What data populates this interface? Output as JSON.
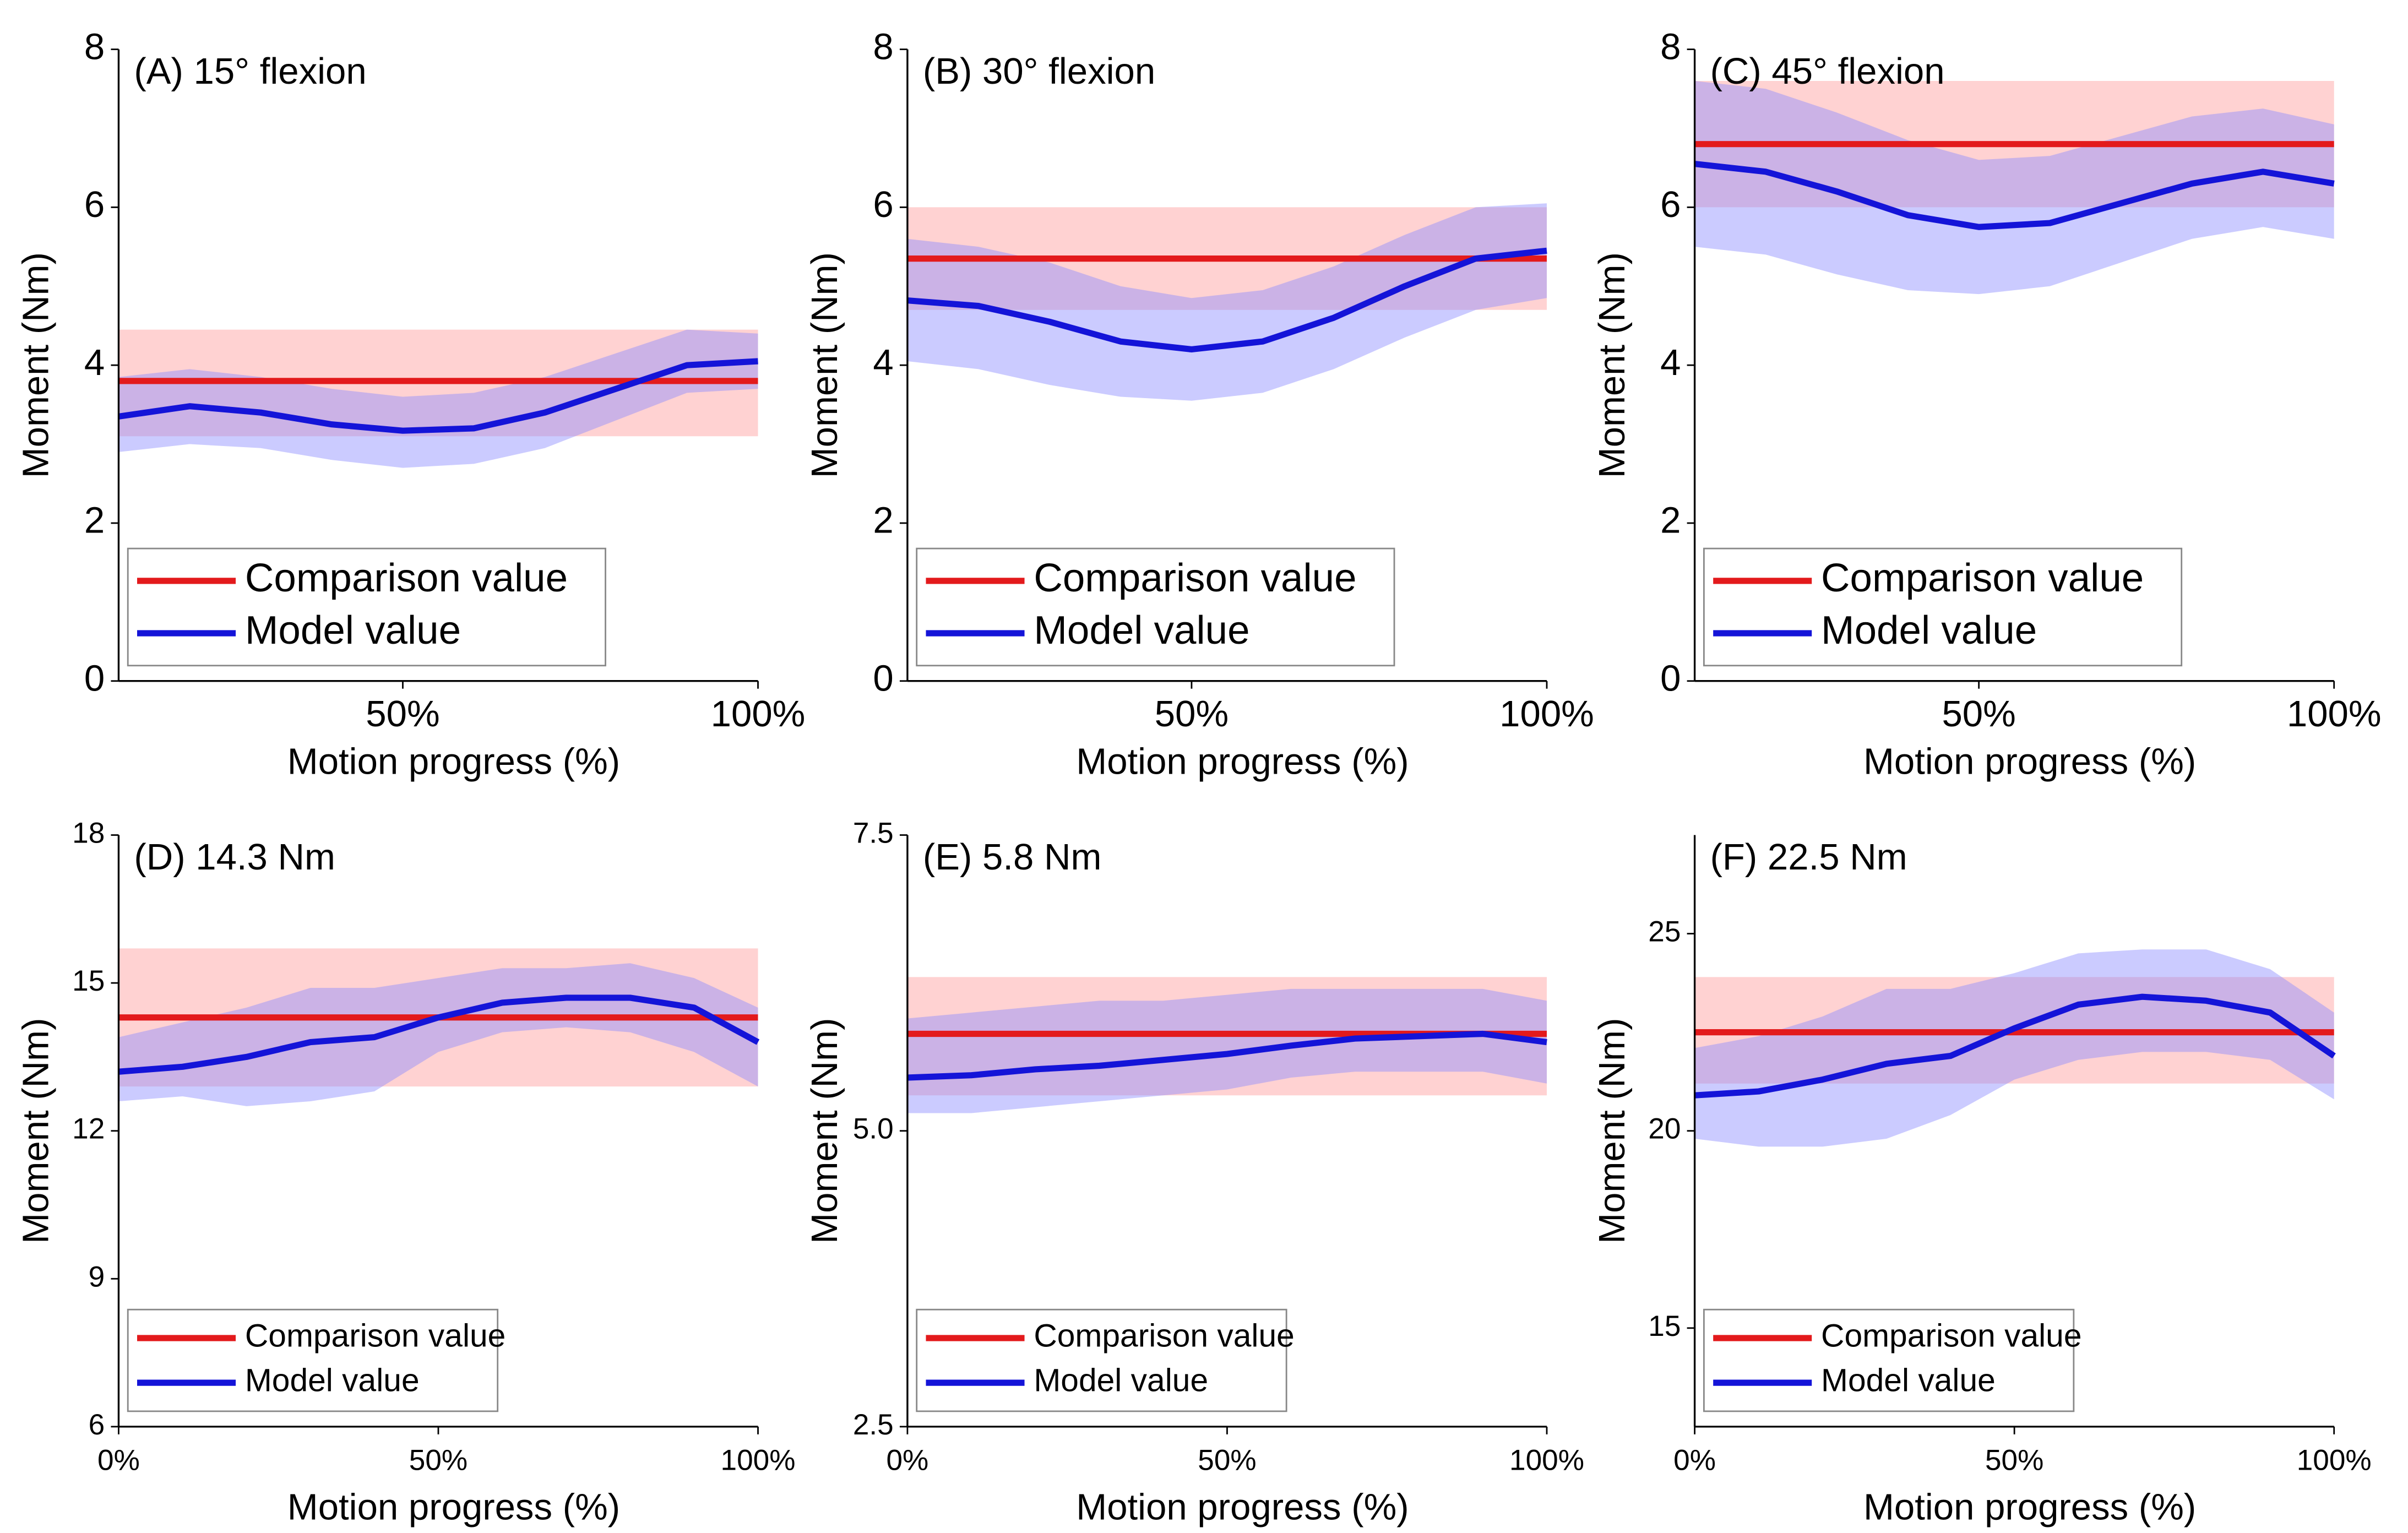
{
  "chart_data": [
    {
      "type": "line",
      "title": "(A) 15° flexion",
      "x_label": "Motion progress (%)",
      "y_label": "Moment (Nm)",
      "x": [
        10,
        20,
        30,
        40,
        50,
        60,
        70,
        80,
        90,
        100
      ],
      "xlim": [
        10,
        100
      ],
      "xticks": [
        {
          "value": 50,
          "label": "50%"
        },
        {
          "value": 100,
          "label": "100%"
        }
      ],
      "ylim": [
        0,
        8
      ],
      "yticks": [
        0,
        2,
        4,
        6,
        8
      ],
      "legend": "lower left",
      "series": [
        {
          "name": "Comparison value",
          "color": "#e31a1c",
          "band_color": "#ff9c9c",
          "values": [
            3.8,
            3.8,
            3.8,
            3.8,
            3.8,
            3.8,
            3.8,
            3.8,
            3.8,
            3.8
          ],
          "band_lower": [
            3.1,
            3.1,
            3.1,
            3.1,
            3.1,
            3.1,
            3.1,
            3.1,
            3.1,
            3.1
          ],
          "band_upper": [
            4.45,
            4.45,
            4.45,
            4.45,
            4.45,
            4.45,
            4.45,
            4.45,
            4.45,
            4.45
          ]
        },
        {
          "name": "Model value",
          "color": "#1414d8",
          "band_color": "#8c8cff",
          "values": [
            3.35,
            3.48,
            3.4,
            3.25,
            3.17,
            3.2,
            3.4,
            3.7,
            4.0,
            4.05
          ],
          "band_lower": [
            2.9,
            3.0,
            2.95,
            2.8,
            2.7,
            2.75,
            2.95,
            3.3,
            3.65,
            3.7
          ],
          "band_upper": [
            3.85,
            3.95,
            3.85,
            3.7,
            3.6,
            3.65,
            3.85,
            4.15,
            4.45,
            4.4
          ]
        }
      ]
    },
    {
      "type": "line",
      "title": "(B) 30° flexion",
      "x_label": "Motion progress (%)",
      "y_label": "Moment (Nm)",
      "x": [
        10,
        20,
        30,
        40,
        50,
        60,
        70,
        80,
        90,
        100
      ],
      "xlim": [
        10,
        100
      ],
      "xticks": [
        {
          "value": 50,
          "label": "50%"
        },
        {
          "value": 100,
          "label": "100%"
        }
      ],
      "ylim": [
        0,
        8
      ],
      "yticks": [
        0,
        2,
        4,
        6,
        8
      ],
      "legend": "lower left",
      "series": [
        {
          "name": "Comparison value",
          "color": "#e31a1c",
          "band_color": "#ff9c9c",
          "values": [
            5.35,
            5.35,
            5.35,
            5.35,
            5.35,
            5.35,
            5.35,
            5.35,
            5.35,
            5.35
          ],
          "band_lower": [
            4.7,
            4.7,
            4.7,
            4.7,
            4.7,
            4.7,
            4.7,
            4.7,
            4.7,
            4.7
          ],
          "band_upper": [
            6.0,
            6.0,
            6.0,
            6.0,
            6.0,
            6.0,
            6.0,
            6.0,
            6.0,
            6.0
          ]
        },
        {
          "name": "Model value",
          "color": "#1414d8",
          "band_color": "#8c8cff",
          "values": [
            4.82,
            4.75,
            4.55,
            4.3,
            4.2,
            4.3,
            4.6,
            5.0,
            5.35,
            5.45
          ],
          "band_lower": [
            4.05,
            3.95,
            3.75,
            3.6,
            3.55,
            3.65,
            3.95,
            4.35,
            4.7,
            4.85
          ],
          "band_upper": [
            5.6,
            5.5,
            5.3,
            5.0,
            4.85,
            4.95,
            5.25,
            5.65,
            6.0,
            6.05
          ]
        }
      ]
    },
    {
      "type": "line",
      "title": "(C) 45° flexion",
      "x_label": "Motion progress (%)",
      "y_label": "Moment (Nm)",
      "x": [
        10,
        20,
        30,
        40,
        50,
        60,
        70,
        80,
        90,
        100
      ],
      "xlim": [
        10,
        100
      ],
      "xticks": [
        {
          "value": 50,
          "label": "50%"
        },
        {
          "value": 100,
          "label": "100%"
        }
      ],
      "ylim": [
        0,
        8
      ],
      "yticks": [
        0,
        2,
        4,
        6,
        8
      ],
      "legend": "lower left",
      "series": [
        {
          "name": "Comparison value",
          "color": "#e31a1c",
          "band_color": "#ff9c9c",
          "values": [
            6.8,
            6.8,
            6.8,
            6.8,
            6.8,
            6.8,
            6.8,
            6.8,
            6.8,
            6.8
          ],
          "band_lower": [
            6.0,
            6.0,
            6.0,
            6.0,
            6.0,
            6.0,
            6.0,
            6.0,
            6.0,
            6.0
          ],
          "band_upper": [
            7.6,
            7.6,
            7.6,
            7.6,
            7.6,
            7.6,
            7.6,
            7.6,
            7.6,
            7.6
          ]
        },
        {
          "name": "Model value",
          "color": "#1414d8",
          "band_color": "#8c8cff",
          "values": [
            6.55,
            6.45,
            6.2,
            5.9,
            5.75,
            5.8,
            6.05,
            6.3,
            6.45,
            6.3
          ],
          "band_lower": [
            5.5,
            5.4,
            5.15,
            4.95,
            4.9,
            5.0,
            5.3,
            5.6,
            5.75,
            5.6
          ],
          "band_upper": [
            7.6,
            7.5,
            7.2,
            6.85,
            6.6,
            6.65,
            6.9,
            7.15,
            7.25,
            7.05
          ]
        }
      ]
    },
    {
      "type": "line",
      "title": "(D) 14.3 Nm",
      "x_label": "Motion progress (%)",
      "y_label": "Moment (Nm)",
      "x": [
        0,
        10,
        20,
        30,
        40,
        50,
        60,
        70,
        80,
        90,
        100
      ],
      "xlim": [
        0,
        100
      ],
      "xticks": [
        {
          "value": 0,
          "label": "0%"
        },
        {
          "value": 50,
          "label": "50%"
        },
        {
          "value": 100,
          "label": "100%"
        }
      ],
      "ylim": [
        6,
        18
      ],
      "yticks": [
        6,
        9,
        12,
        15,
        18
      ],
      "legend": "lower left",
      "series": [
        {
          "name": "Comparison value",
          "color": "#e31a1c",
          "band_color": "#ff9c9c",
          "values": [
            14.3,
            14.3,
            14.3,
            14.3,
            14.3,
            14.3,
            14.3,
            14.3,
            14.3,
            14.3,
            14.3
          ],
          "band_lower": [
            12.9,
            12.9,
            12.9,
            12.9,
            12.9,
            12.9,
            12.9,
            12.9,
            12.9,
            12.9,
            12.9
          ],
          "band_upper": [
            15.7,
            15.7,
            15.7,
            15.7,
            15.7,
            15.7,
            15.7,
            15.7,
            15.7,
            15.7,
            15.7
          ]
        },
        {
          "name": "Model value",
          "color": "#1414d8",
          "band_color": "#8c8cff",
          "values": [
            13.2,
            13.3,
            13.5,
            13.8,
            13.9,
            14.3,
            14.6,
            14.7,
            14.7,
            14.5,
            13.8
          ],
          "band_lower": [
            12.6,
            12.7,
            12.5,
            12.6,
            12.8,
            13.6,
            14.0,
            14.1,
            14.0,
            13.6,
            12.9
          ],
          "band_upper": [
            13.9,
            14.2,
            14.5,
            14.9,
            14.9,
            15.1,
            15.3,
            15.3,
            15.4,
            15.1,
            14.5
          ]
        }
      ]
    },
    {
      "type": "line",
      "title": "(E) 5.8 Nm",
      "x_label": "Motion progress (%)",
      "y_label": "Moment (Nm)",
      "x": [
        0,
        10,
        20,
        30,
        40,
        50,
        60,
        70,
        80,
        90,
        100
      ],
      "xlim": [
        0,
        100
      ],
      "xticks": [
        {
          "value": 0,
          "label": "0%"
        },
        {
          "value": 50,
          "label": "50%"
        },
        {
          "value": 100,
          "label": "100%"
        }
      ],
      "ylim": [
        2.5,
        7.5
      ],
      "yticks": [
        2.5,
        {
          "value": 5,
          "label": "5.0"
        },
        7.5
      ],
      "legend": "lower left",
      "series": [
        {
          "name": "Comparison value",
          "color": "#e31a1c",
          "band_color": "#ff9c9c",
          "values": [
            5.82,
            5.82,
            5.82,
            5.82,
            5.82,
            5.82,
            5.82,
            5.82,
            5.82,
            5.82,
            5.82
          ],
          "band_lower": [
            5.3,
            5.3,
            5.3,
            5.3,
            5.3,
            5.3,
            5.3,
            5.3,
            5.3,
            5.3,
            5.3
          ],
          "band_upper": [
            6.3,
            6.3,
            6.3,
            6.3,
            6.3,
            6.3,
            6.3,
            6.3,
            6.3,
            6.3,
            6.3
          ]
        },
        {
          "name": "Model value",
          "color": "#1414d8",
          "band_color": "#8c8cff",
          "values": [
            5.45,
            5.47,
            5.52,
            5.55,
            5.6,
            5.65,
            5.72,
            5.78,
            5.8,
            5.82,
            5.75
          ],
          "band_lower": [
            5.15,
            5.15,
            5.2,
            5.25,
            5.3,
            5.35,
            5.45,
            5.5,
            5.5,
            5.5,
            5.4
          ],
          "band_upper": [
            5.95,
            6.0,
            6.05,
            6.1,
            6.1,
            6.15,
            6.2,
            6.2,
            6.2,
            6.2,
            6.1
          ]
        }
      ]
    },
    {
      "type": "line",
      "title": "(F) 22.5 Nm",
      "x_label": "Motion progress (%)",
      "y_label": "Moment (Nm)",
      "x": [
        0,
        10,
        20,
        30,
        40,
        50,
        60,
        70,
        80,
        90,
        100
      ],
      "xlim": [
        0,
        100
      ],
      "xticks": [
        {
          "value": 0,
          "label": "0%"
        },
        {
          "value": 50,
          "label": "50%"
        },
        {
          "value": 100,
          "label": "100%"
        }
      ],
      "ylim": [
        12.5,
        27.5
      ],
      "yticks": [
        15,
        20,
        25
      ],
      "legend": "lower left",
      "series": [
        {
          "name": "Comparison value",
          "color": "#e31a1c",
          "band_color": "#ff9c9c",
          "values": [
            22.5,
            22.5,
            22.5,
            22.5,
            22.5,
            22.5,
            22.5,
            22.5,
            22.5,
            22.5,
            22.5
          ],
          "band_lower": [
            21.2,
            21.2,
            21.2,
            21.2,
            21.2,
            21.2,
            21.2,
            21.2,
            21.2,
            21.2,
            21.2
          ],
          "band_upper": [
            23.9,
            23.9,
            23.9,
            23.9,
            23.9,
            23.9,
            23.9,
            23.9,
            23.9,
            23.9,
            23.9
          ]
        },
        {
          "name": "Model value",
          "color": "#1414d8",
          "band_color": "#8c8cff",
          "values": [
            20.9,
            21.0,
            21.3,
            21.7,
            21.9,
            22.6,
            23.2,
            23.4,
            23.3,
            23.0,
            21.9
          ],
          "band_lower": [
            19.8,
            19.6,
            19.6,
            19.8,
            20.4,
            21.3,
            21.8,
            22.0,
            22.0,
            21.8,
            20.8
          ],
          "band_upper": [
            22.1,
            22.4,
            22.9,
            23.6,
            23.6,
            24.0,
            24.5,
            24.6,
            24.6,
            24.1,
            23.0
          ]
        }
      ]
    }
  ]
}
